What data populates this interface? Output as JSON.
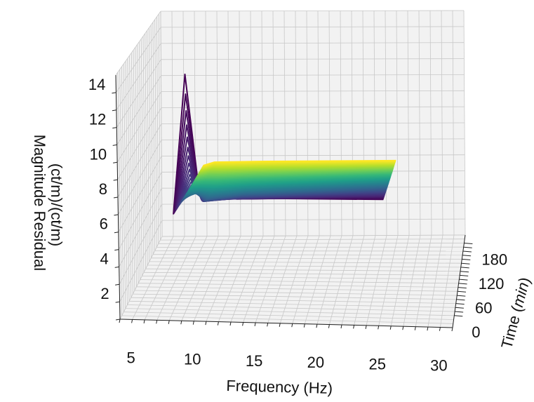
{
  "chart_data": {
    "type": "line",
    "projection": "3d",
    "x_axis": {
      "label": "Frequency (Hz)",
      "range": [
        4,
        31
      ],
      "ticks": [
        5,
        10,
        15,
        20,
        25,
        30
      ],
      "tick_labels": [
        "5",
        "10",
        "15",
        "20",
        "25",
        "30"
      ]
    },
    "y_axis": {
      "label_prefix": "Time (",
      "label_unit": "min",
      "label_suffix": ")",
      "range": [
        -30,
        200
      ],
      "ticks": [
        0,
        60,
        120,
        180
      ],
      "tick_labels": [
        "0",
        "60",
        "120",
        "180"
      ]
    },
    "z_axis": {
      "label_line1": "Magnitude Residual",
      "label_line2": "(ct/m)/(ct/m)",
      "range": [
        1,
        15
      ],
      "ticks": [
        2,
        4,
        6,
        8,
        10,
        12,
        14
      ],
      "tick_labels": [
        "2",
        "4",
        "6",
        "8",
        "10",
        "12",
        "14"
      ]
    },
    "colormap": "viridis",
    "colormap_stops": [
      "#440154",
      "#482878",
      "#3e4989",
      "#31688e",
      "#26828e",
      "#1f9e89",
      "#35b779",
      "#6ece58",
      "#b5de2b",
      "#fde725"
    ],
    "frequencies": [
      8,
      9,
      10,
      13,
      25
    ],
    "time_range": [
      0,
      180
    ],
    "series_count": 60,
    "series_profile": {
      "peak_start": 14,
      "peak_end": 6,
      "second_start": 8,
      "second_end": 6,
      "plateau_start": 7,
      "plateau_end": 6,
      "end_start": 6.5,
      "end_end": 6
    },
    "grid": true
  }
}
